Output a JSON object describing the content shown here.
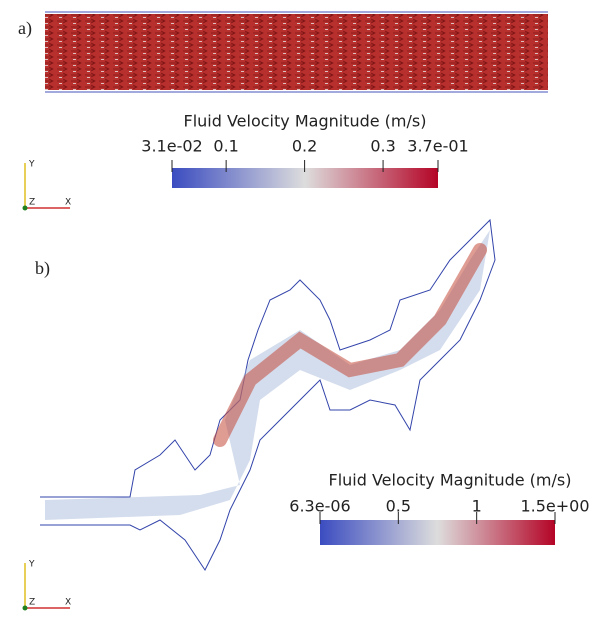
{
  "panels": [
    {
      "label": "a)",
      "colorbar": {
        "title": "Fluid Velocity Magnitude (m/s)",
        "range": [
          {
            "value": 0.031,
            "label": "3.1e-02"
          },
          {
            "value": 0.37,
            "label": "3.7e-01"
          }
        ],
        "ticks": [
          0.1,
          0.2,
          0.3
        ]
      },
      "axes": {
        "y": "Y",
        "z": "Z",
        "x": "X"
      }
    },
    {
      "label": "b)",
      "colorbar": {
        "title": "Fluid Velocity Magnitude (m/s)",
        "range": [
          {
            "value": 6.3e-06,
            "label": "6.3e-06"
          },
          {
            "value": 1.5,
            "label": "1.5e+00"
          }
        ],
        "ticks": [
          0.5,
          1
        ]
      },
      "axes": {
        "y": "Y",
        "z": "Z",
        "x": "X"
      }
    }
  ]
}
